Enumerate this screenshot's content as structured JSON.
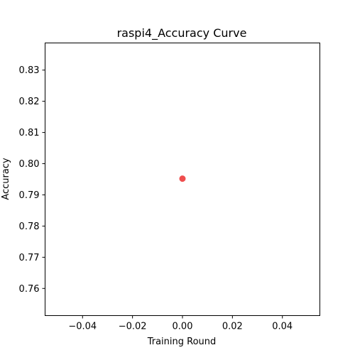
{
  "chart_data": {
    "type": "scatter",
    "title": "raspi4_Accuracy Curve",
    "xlabel": "Training Round",
    "ylabel": "Accuracy",
    "xlim": [
      -0.055,
      0.055
    ],
    "ylim": [
      0.7513,
      0.8387
    ],
    "xticks": [
      -0.04,
      -0.02,
      0.0,
      0.02,
      0.04
    ],
    "xtick_labels": [
      "−0.04",
      "−0.02",
      "0.00",
      "0.02",
      "0.04"
    ],
    "yticks": [
      0.76,
      0.77,
      0.78,
      0.79,
      0.8,
      0.81,
      0.82,
      0.83
    ],
    "ytick_labels": [
      "0.76",
      "0.77",
      "0.78",
      "0.79",
      "0.80",
      "0.81",
      "0.82",
      "0.83"
    ],
    "grid": false,
    "series": [
      {
        "x": [
          0
        ],
        "y": [
          0.7952
        ],
        "color": "#ee4444"
      }
    ]
  }
}
